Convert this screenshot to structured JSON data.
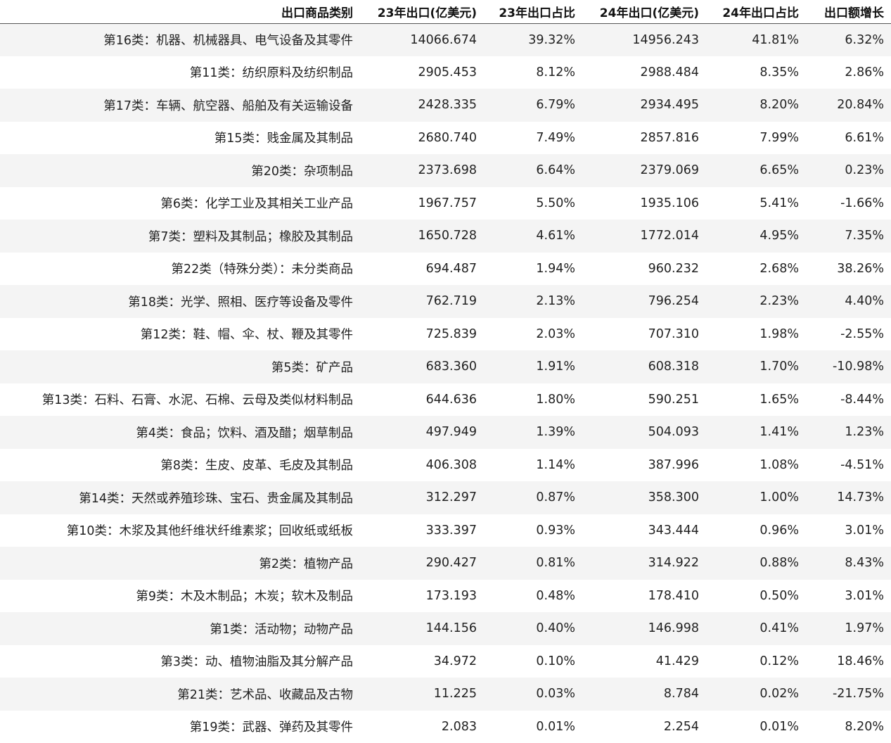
{
  "headers": [
    "出口商品类别",
    "23年出口(亿美元)",
    "23年出口占比",
    "24年出口(亿美元)",
    "24年出口占比",
    "出口额增长"
  ],
  "rows": [
    [
      "第16类：机器、机械器具、电气设备及其零件",
      "14066.674",
      "39.32%",
      "14956.243",
      "41.81%",
      "6.32%"
    ],
    [
      "第11类：纺织原料及纺织制品",
      "2905.453",
      "8.12%",
      "2988.484",
      "8.35%",
      "2.86%"
    ],
    [
      "第17类：车辆、航空器、船舶及有关运输设备",
      "2428.335",
      "6.79%",
      "2934.495",
      "8.20%",
      "20.84%"
    ],
    [
      "第15类：贱金属及其制品",
      "2680.740",
      "7.49%",
      "2857.816",
      "7.99%",
      "6.61%"
    ],
    [
      "第20类：杂项制品",
      "2373.698",
      "6.64%",
      "2379.069",
      "6.65%",
      "0.23%"
    ],
    [
      "第6类：化学工业及其相关工业产品",
      "1967.757",
      "5.50%",
      "1935.106",
      "5.41%",
      "-1.66%"
    ],
    [
      "第7类：塑料及其制品；橡胶及其制品",
      "1650.728",
      "4.61%",
      "1772.014",
      "4.95%",
      "7.35%"
    ],
    [
      "第22类（特殊分类）：未分类商品",
      "694.487",
      "1.94%",
      "960.232",
      "2.68%",
      "38.26%"
    ],
    [
      "第18类：光学、照相、医疗等设备及零件",
      "762.719",
      "2.13%",
      "796.254",
      "2.23%",
      "4.40%"
    ],
    [
      "第12类：鞋、帽、伞、杖、鞭及其零件",
      "725.839",
      "2.03%",
      "707.310",
      "1.98%",
      "-2.55%"
    ],
    [
      "第5类：矿产品",
      "683.360",
      "1.91%",
      "608.318",
      "1.70%",
      "-10.98%"
    ],
    [
      "第13类：石料、石膏、水泥、石棉、云母及类似材料制品",
      "644.636",
      "1.80%",
      "590.251",
      "1.65%",
      "-8.44%"
    ],
    [
      "第4类：食品；饮料、酒及醋；烟草制品",
      "497.949",
      "1.39%",
      "504.093",
      "1.41%",
      "1.23%"
    ],
    [
      "第8类：生皮、皮革、毛皮及其制品",
      "406.308",
      "1.14%",
      "387.996",
      "1.08%",
      "-4.51%"
    ],
    [
      "第14类：天然或养殖珍珠、宝石、贵金属及其制品",
      "312.297",
      "0.87%",
      "358.300",
      "1.00%",
      "14.73%"
    ],
    [
      "第10类：木浆及其他纤维状纤维素浆；回收纸或纸板",
      "333.397",
      "0.93%",
      "343.444",
      "0.96%",
      "3.01%"
    ],
    [
      "第2类：植物产品",
      "290.427",
      "0.81%",
      "314.922",
      "0.88%",
      "8.43%"
    ],
    [
      "第9类：木及木制品；木炭；软木及制品",
      "173.193",
      "0.48%",
      "178.410",
      "0.50%",
      "3.01%"
    ],
    [
      "第1类：活动物；动物产品",
      "144.156",
      "0.40%",
      "146.998",
      "0.41%",
      "1.97%"
    ],
    [
      "第3类：动、植物油脂及其分解产品",
      "34.972",
      "0.10%",
      "41.429",
      "0.12%",
      "18.46%"
    ],
    [
      "第21类：艺术品、收藏品及古物",
      "11.225",
      "0.03%",
      "8.784",
      "0.02%",
      "-21.75%"
    ],
    [
      "第19类：武器、弹药及其零件",
      "2.083",
      "0.01%",
      "2.254",
      "0.01%",
      "8.20%"
    ]
  ]
}
